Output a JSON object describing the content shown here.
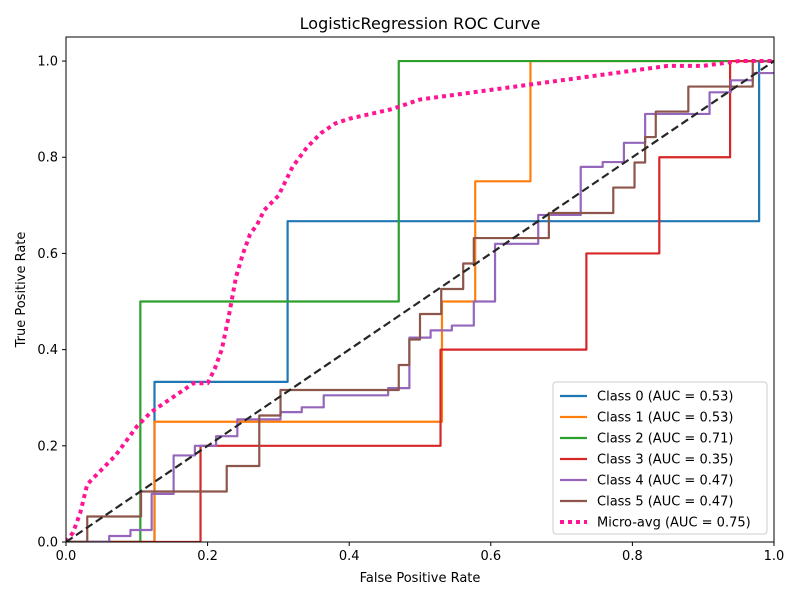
{
  "chart_data": {
    "type": "line",
    "title": "LogisticRegression ROC Curve",
    "xlabel": "False Positive Rate",
    "ylabel": "True Positive Rate",
    "xlim": [
      0.0,
      1.0
    ],
    "ylim": [
      0.0,
      1.05
    ],
    "xticks": [
      0.0,
      0.2,
      0.4,
      0.6,
      0.8,
      1.0
    ],
    "yticks": [
      0.0,
      0.2,
      0.4,
      0.6,
      0.8,
      1.0
    ],
    "xtick_labels": [
      "0.0",
      "0.2",
      "0.4",
      "0.6",
      "0.8",
      "1.0"
    ],
    "ytick_labels": [
      "0.0",
      "0.2",
      "0.4",
      "0.6",
      "0.8",
      "1.0"
    ],
    "grid": false,
    "legend_position": "bottom-right",
    "chance_line": {
      "x": [
        0,
        1
      ],
      "y": [
        0,
        1
      ],
      "color": "#262626",
      "style": "dashed"
    },
    "series": [
      {
        "name": "Class 0 (AUC = 0.53)",
        "color": "#1f77b4",
        "style": "solid",
        "x": [
          0,
          0.125,
          0.125,
          0.313,
          0.313,
          0.979,
          0.979,
          1.0
        ],
        "y": [
          0,
          0,
          0.333,
          0.333,
          0.667,
          0.667,
          1.0,
          1.0
        ]
      },
      {
        "name": "Class 1 (AUC = 0.53)",
        "color": "#ff7f0e",
        "style": "solid",
        "x": [
          0,
          0.125,
          0.125,
          0.531,
          0.531,
          0.578,
          0.578,
          0.656,
          0.656,
          1.0
        ],
        "y": [
          0,
          0,
          0.25,
          0.25,
          0.5,
          0.5,
          0.75,
          0.75,
          1.0,
          1.0
        ]
      },
      {
        "name": "Class 2 (AUC = 0.71)",
        "color": "#2ca02c",
        "style": "solid",
        "x": [
          0,
          0.105,
          0.105,
          0.47,
          0.47,
          1.0
        ],
        "y": [
          0,
          0,
          0.5,
          0.5,
          1.0,
          1.0
        ]
      },
      {
        "name": "Class 3 (AUC = 0.35)",
        "color": "#d62728",
        "style": "solid",
        "x": [
          0,
          0.19,
          0.19,
          0.529,
          0.529,
          0.735,
          0.735,
          0.838,
          0.838,
          0.938,
          0.938,
          1.0
        ],
        "y": [
          0,
          0,
          0.2,
          0.2,
          0.4,
          0.4,
          0.6,
          0.6,
          0.8,
          0.8,
          1.0,
          1.0
        ]
      },
      {
        "name": "Class 4 (AUC = 0.47)",
        "color": "#9467bd",
        "style": "solid",
        "x": [
          0,
          0.061,
          0.061,
          0.091,
          0.091,
          0.121,
          0.121,
          0.152,
          0.152,
          0.182,
          0.182,
          0.212,
          0.212,
          0.242,
          0.242,
          0.303,
          0.303,
          0.333,
          0.333,
          0.364,
          0.364,
          0.455,
          0.455,
          0.485,
          0.485,
          0.515,
          0.515,
          0.545,
          0.545,
          0.576,
          0.576,
          0.606,
          0.606,
          0.667,
          0.667,
          0.727,
          0.727,
          0.758,
          0.758,
          0.788,
          0.788,
          0.818,
          0.818,
          0.909,
          0.909,
          0.939,
          0.939,
          0.97,
          0.97,
          1.0
        ],
        "y": [
          0,
          0,
          0.0125,
          0.0125,
          0.025,
          0.025,
          0.1,
          0.1,
          0.18,
          0.18,
          0.2,
          0.2,
          0.22,
          0.22,
          0.255,
          0.255,
          0.27,
          0.27,
          0.28,
          0.28,
          0.305,
          0.305,
          0.32,
          0.32,
          0.425,
          0.425,
          0.44,
          0.44,
          0.45,
          0.45,
          0.5,
          0.5,
          0.62,
          0.62,
          0.68,
          0.68,
          0.78,
          0.78,
          0.79,
          0.79,
          0.83,
          0.83,
          0.89,
          0.89,
          0.935,
          0.935,
          0.96,
          0.96,
          0.975,
          0.975
        ]
      },
      {
        "name": "Class 5 (AUC = 0.47)",
        "color": "#8c564b",
        "style": "solid",
        "x": [
          0,
          0.03,
          0.03,
          0.106,
          0.106,
          0.227,
          0.227,
          0.273,
          0.273,
          0.303,
          0.303,
          0.47,
          0.47,
          0.485,
          0.485,
          0.5,
          0.5,
          0.53,
          0.53,
          0.561,
          0.561,
          0.576,
          0.576,
          0.682,
          0.682,
          0.773,
          0.773,
          0.803,
          0.803,
          0.818,
          0.818,
          0.833,
          0.833,
          0.879,
          0.879,
          0.97,
          0.97,
          1.0
        ],
        "y": [
          0,
          0,
          0.053,
          0.053,
          0.105,
          0.105,
          0.158,
          0.158,
          0.263,
          0.263,
          0.316,
          0.316,
          0.368,
          0.368,
          0.421,
          0.421,
          0.474,
          0.474,
          0.526,
          0.526,
          0.579,
          0.579,
          0.632,
          0.632,
          0.684,
          0.684,
          0.737,
          0.737,
          0.789,
          0.789,
          0.842,
          0.842,
          0.895,
          0.895,
          0.947,
          0.947,
          1.0,
          1.0
        ]
      },
      {
        "name": "Micro-avg (AUC = 0.75)",
        "color": "#ff1493",
        "style": "dotted",
        "x": [
          0,
          0.01,
          0.02,
          0.03,
          0.05,
          0.07,
          0.1,
          0.12,
          0.15,
          0.18,
          0.2,
          0.21,
          0.22,
          0.23,
          0.24,
          0.25,
          0.26,
          0.27,
          0.28,
          0.3,
          0.32,
          0.34,
          0.36,
          0.38,
          0.4,
          0.43,
          0.46,
          0.5,
          0.55,
          0.6,
          0.65,
          0.7,
          0.75,
          0.8,
          0.85,
          0.9,
          0.95,
          1.0
        ],
        "y": [
          0,
          0.02,
          0.06,
          0.12,
          0.15,
          0.18,
          0.24,
          0.27,
          0.3,
          0.33,
          0.33,
          0.36,
          0.4,
          0.47,
          0.55,
          0.6,
          0.64,
          0.66,
          0.69,
          0.72,
          0.78,
          0.82,
          0.85,
          0.87,
          0.88,
          0.89,
          0.9,
          0.92,
          0.93,
          0.94,
          0.95,
          0.96,
          0.97,
          0.98,
          0.99,
          0.99,
          1.0,
          1.0
        ]
      }
    ]
  }
}
